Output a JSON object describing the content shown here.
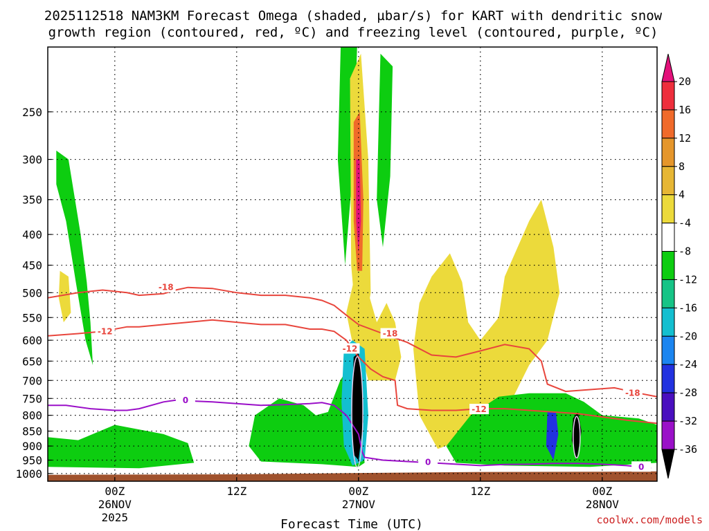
{
  "chart_data": {
    "type": "heatmap",
    "title_line1": "2025112518 NAM3KM Forecast Omega (shaded, µbar/s) for KART with dendritic snow",
    "title_line2": "growth region (contoured, red, ºC) and freezing level (contoured, purple, ºC)",
    "xlabel": "Forecast Time (UTC)",
    "credit": "coolwx.com/models",
    "x_range_hours": [
      -5.5,
      44.5
    ],
    "y_range_hpa": [
      195,
      1030
    ],
    "x_ticks": [
      {
        "h": 0,
        "top": "00Z",
        "mid": "26NOV",
        "bot": "2025"
      },
      {
        "h": 10,
        "top": "12Z",
        "mid": "",
        "bot": ""
      },
      {
        "h": 20,
        "top": "00Z",
        "mid": "27NOV",
        "bot": ""
      },
      {
        "h": 30,
        "top": "12Z",
        "mid": "",
        "bot": ""
      },
      {
        "h": 40,
        "top": "00Z",
        "mid": "28NOV",
        "bot": ""
      }
    ],
    "y_ticks": [
      250,
      300,
      350,
      400,
      450,
      500,
      550,
      600,
      650,
      700,
      750,
      800,
      850,
      900,
      950,
      1000
    ],
    "colorbar": {
      "levels": [
        20,
        16,
        12,
        8,
        4,
        -4,
        -8,
        -12,
        -16,
        -20,
        -24,
        -28,
        -32,
        -36
      ],
      "bins": [
        {
          "from": 16,
          "to": 20,
          "color": "#ee2e3c"
        },
        {
          "from": 12,
          "to": 16,
          "color": "#f06a2a"
        },
        {
          "from": 8,
          "to": 12,
          "color": "#e5962b"
        },
        {
          "from": 4,
          "to": 8,
          "color": "#e6b634"
        },
        {
          "from": 2,
          "to": 4,
          "color": "#ecda3b"
        },
        {
          "from": -4,
          "to": 2,
          "color": "#ffffff"
        },
        {
          "from": -8,
          "to": -4,
          "color": "#0dcd10"
        },
        {
          "from": -12,
          "to": -8,
          "color": "#16c486"
        },
        {
          "from": -16,
          "to": -12,
          "color": "#13bfd0"
        },
        {
          "from": -20,
          "to": -16,
          "color": "#1b85f0"
        },
        {
          "from": -24,
          "to": -20,
          "color": "#2232e0"
        },
        {
          "from": -28,
          "to": -24,
          "color": "#4a0fbf"
        },
        {
          "from": -32,
          "to": -28,
          "color": "#9a10c8"
        },
        {
          "from": -36,
          "to": -32,
          "color": "#a8a8a8"
        }
      ],
      "top_arrow_color": "#e3117a",
      "bottom_arrow_color": "#000000"
    },
    "omega_regions": [
      {
        "value": -6,
        "color": "#0dcd10",
        "points": [
          [
            -4.8,
            290
          ],
          [
            -3.8,
            300
          ],
          [
            -2.8,
            400
          ],
          [
            -2.3,
            480
          ],
          [
            -2.0,
            560
          ],
          [
            -1.8,
            660
          ],
          [
            -2.4,
            600
          ],
          [
            -3.2,
            480
          ],
          [
            -4.0,
            380
          ],
          [
            -4.8,
            330
          ]
        ]
      },
      {
        "value": 4,
        "color": "#ecda3b",
        "points": [
          [
            -4.5,
            460
          ],
          [
            -3.8,
            470
          ],
          [
            -3.6,
            540
          ],
          [
            -4.2,
            560
          ],
          [
            -4.6,
            510
          ]
        ]
      },
      {
        "value": -6,
        "color": "#0dcd10",
        "points": [
          [
            -5.5,
            870
          ],
          [
            -3,
            880
          ],
          [
            0,
            830
          ],
          [
            4,
            860
          ],
          [
            6,
            890
          ],
          [
            6.5,
            960
          ],
          [
            2,
            980
          ],
          [
            -5.5,
            975
          ]
        ]
      },
      {
        "value": -6,
        "color": "#0dcd10",
        "points": [
          [
            11.5,
            800
          ],
          [
            13.5,
            750
          ],
          [
            15.5,
            770
          ],
          [
            16.5,
            800
          ],
          [
            17.5,
            790
          ],
          [
            18.5,
            700
          ],
          [
            19.5,
            650
          ],
          [
            20.2,
            790
          ],
          [
            20.5,
            960
          ],
          [
            20,
            975
          ],
          [
            17,
            965
          ],
          [
            12,
            955
          ],
          [
            11.0,
            900
          ]
        ]
      },
      {
        "value": 4,
        "color": "#ecda3b",
        "points": [
          [
            19.0,
            540
          ],
          [
            19.8,
            460
          ],
          [
            20.8,
            500
          ],
          [
            21.5,
            560
          ],
          [
            22.3,
            520
          ],
          [
            23,
            560
          ],
          [
            23.5,
            640
          ],
          [
            23,
            700
          ],
          [
            20.8,
            700
          ],
          [
            20.3,
            640
          ],
          [
            19.6,
            620
          ]
        ]
      },
      {
        "value": 4,
        "color": "#ecda3b",
        "points": [
          [
            24.5,
            620
          ],
          [
            25,
            520
          ],
          [
            26,
            470
          ],
          [
            27.5,
            430
          ],
          [
            28.5,
            480
          ],
          [
            29,
            560
          ],
          [
            30,
            600
          ],
          [
            31.5,
            550
          ],
          [
            32,
            470
          ],
          [
            34,
            380
          ],
          [
            35,
            350
          ],
          [
            36,
            420
          ],
          [
            36.5,
            500
          ],
          [
            35.5,
            600
          ],
          [
            34,
            660
          ],
          [
            32.5,
            760
          ],
          [
            31,
            800
          ],
          [
            29,
            870
          ],
          [
            26.5,
            910
          ],
          [
            25,
            800
          ]
        ]
      },
      {
        "value": -10,
        "color": "#0dcd10",
        "points": [
          [
            29.2,
            800
          ],
          [
            31.5,
            745
          ],
          [
            34,
            735
          ],
          [
            37,
            735
          ],
          [
            38.5,
            760
          ],
          [
            40,
            800
          ],
          [
            43,
            810
          ],
          [
            44.5,
            830
          ],
          [
            44.5,
            960
          ],
          [
            39,
            975
          ],
          [
            32,
            970
          ],
          [
            28,
            960
          ],
          [
            27.2,
            900
          ]
        ]
      },
      {
        "value": -8,
        "color": "#0dcd10",
        "points": [
          [
            18.3,
            300
          ],
          [
            18.8,
            120
          ],
          [
            20.2,
            120
          ],
          [
            19.6,
            300
          ],
          [
            18.9,
            450
          ]
        ]
      },
      {
        "value": -8,
        "color": "#0dcd10",
        "points": [
          [
            21.5,
            350
          ],
          [
            21.8,
            200
          ],
          [
            22.8,
            210
          ],
          [
            22.6,
            320
          ],
          [
            22.0,
            420
          ]
        ]
      },
      {
        "value": 4,
        "color": "#ecda3b",
        "points": [
          [
            19.3,
            220
          ],
          [
            20.2,
            200
          ],
          [
            20.8,
            300
          ],
          [
            21.0,
            500
          ],
          [
            20.6,
            560
          ],
          [
            19.8,
            560
          ],
          [
            19.4,
            450
          ]
        ]
      },
      {
        "value": 14,
        "color": "#f06a2a",
        "points": [
          [
            19.6,
            260
          ],
          [
            20.1,
            250
          ],
          [
            20.4,
            350
          ],
          [
            20.3,
            460
          ],
          [
            19.9,
            460
          ],
          [
            19.6,
            380
          ]
        ]
      },
      {
        "value": 20,
        "color": "#e3117a",
        "points": [
          [
            19.8,
            300
          ],
          [
            20.1,
            300
          ],
          [
            20.2,
            380
          ],
          [
            20.0,
            430
          ],
          [
            19.8,
            380
          ]
        ]
      },
      {
        "value": -14,
        "color": "#13bfd0",
        "points": [
          [
            18.8,
            620
          ],
          [
            19.5,
            600
          ],
          [
            20.5,
            620
          ],
          [
            20.8,
            800
          ],
          [
            20.5,
            950
          ],
          [
            19.5,
            970
          ],
          [
            18.8,
            900
          ],
          [
            18.6,
            760
          ]
        ]
      },
      {
        "value": -36,
        "color": "#000000",
        "points": [
          [
            19.6,
            640
          ],
          [
            20.0,
            630
          ],
          [
            20.3,
            700
          ],
          [
            20.4,
            820
          ],
          [
            20.0,
            950
          ],
          [
            19.6,
            930
          ],
          [
            19.4,
            800
          ]
        ]
      },
      {
        "value": -24,
        "color": "#2232e0",
        "points": [
          [
            35.5,
            790
          ],
          [
            36.2,
            790
          ],
          [
            36.4,
            860
          ],
          [
            36.0,
            950
          ],
          [
            35.4,
            900
          ]
        ]
      },
      {
        "value": -36,
        "color": "#000000",
        "points": [
          [
            37.6,
            810
          ],
          [
            38.0,
            790
          ],
          [
            38.3,
            850
          ],
          [
            37.9,
            950
          ],
          [
            37.5,
            880
          ]
        ]
      }
    ],
    "dgz_lines": [
      {
        "label": "-18",
        "color": "#e8453c",
        "points": [
          [
            -5.5,
            510
          ],
          [
            -3,
            500
          ],
          [
            -1,
            495
          ],
          [
            1,
            500
          ],
          [
            2,
            505
          ],
          [
            4,
            502
          ],
          [
            5,
            495
          ],
          [
            6,
            490
          ],
          [
            8,
            492
          ],
          [
            10,
            500
          ],
          [
            12,
            505
          ],
          [
            14,
            505
          ],
          [
            16,
            510
          ],
          [
            17,
            515
          ],
          [
            18,
            525
          ],
          [
            19,
            545
          ],
          [
            20,
            565
          ],
          [
            22,
            585
          ],
          [
            24,
            605
          ],
          [
            26,
            635
          ],
          [
            28,
            640
          ],
          [
            30,
            625
          ],
          [
            32,
            610
          ],
          [
            34,
            620
          ],
          [
            35,
            650
          ],
          [
            35.5,
            710
          ],
          [
            37,
            730
          ],
          [
            39,
            725
          ],
          [
            41,
            720
          ],
          [
            43,
            735
          ],
          [
            44.5,
            745
          ]
        ]
      },
      {
        "label": "-12",
        "color": "#e8453c",
        "points": [
          [
            -5.5,
            590
          ],
          [
            -3,
            585
          ],
          [
            -1,
            580
          ],
          [
            1,
            570
          ],
          [
            2,
            570
          ],
          [
            4,
            565
          ],
          [
            6,
            560
          ],
          [
            8,
            555
          ],
          [
            10,
            560
          ],
          [
            12,
            565
          ],
          [
            14,
            565
          ],
          [
            16,
            575
          ],
          [
            17,
            575
          ],
          [
            18,
            580
          ],
          [
            19,
            600
          ],
          [
            20,
            640
          ],
          [
            21,
            670
          ],
          [
            22,
            690
          ],
          [
            23,
            700
          ],
          [
            23.2,
            770
          ],
          [
            24,
            780
          ],
          [
            26,
            785
          ],
          [
            28,
            785
          ],
          [
            30,
            780
          ],
          [
            32,
            780
          ],
          [
            34,
            785
          ],
          [
            36,
            790
          ],
          [
            38,
            795
          ],
          [
            40,
            805
          ],
          [
            42,
            815
          ],
          [
            44.5,
            825
          ]
        ]
      },
      {
        "label": "0",
        "color": "#9a0ec8",
        "points": [
          [
            -5.5,
            770
          ],
          [
            -4,
            770
          ],
          [
            -2,
            780
          ],
          [
            0,
            785
          ],
          [
            1,
            785
          ],
          [
            2,
            780
          ],
          [
            4,
            760
          ],
          [
            5,
            755
          ],
          [
            6,
            757
          ],
          [
            8,
            760
          ],
          [
            10,
            765
          ],
          [
            12,
            770
          ],
          [
            14,
            768
          ],
          [
            16,
            765
          ],
          [
            17,
            762
          ],
          [
            18,
            770
          ],
          [
            19,
            800
          ],
          [
            20,
            860
          ],
          [
            20.3,
            920
          ],
          [
            20.5,
            940
          ],
          [
            22,
            950
          ],
          [
            24,
            955
          ],
          [
            26,
            960
          ],
          [
            28,
            965
          ],
          [
            30,
            970
          ],
          [
            32,
            966
          ],
          [
            34,
            965
          ],
          [
            36,
            962
          ],
          [
            38,
            962
          ],
          [
            40,
            965
          ],
          [
            42,
            970
          ],
          [
            44,
            980
          ]
        ]
      }
    ],
    "contour_labels": [
      {
        "text": "-18",
        "h": 4.2,
        "p": 490,
        "color": "#e8453c"
      },
      {
        "text": "-12",
        "h": -0.8,
        "p": 580,
        "color": "#e8453c"
      },
      {
        "text": "0",
        "h": 5.8,
        "p": 755,
        "color": "#9a0ec8"
      },
      {
        "text": "-18",
        "h": 22.6,
        "p": 585,
        "color": "#e8453c"
      },
      {
        "text": "-12",
        "h": 29.9,
        "p": 782,
        "color": "#e8453c"
      },
      {
        "text": "-18",
        "h": 42.5,
        "p": 735,
        "color": "#e8453c"
      },
      {
        "text": "0",
        "h": 25.7,
        "p": 958,
        "color": "#9a0ec8"
      },
      {
        "text": "0",
        "h": 43.2,
        "p": 975,
        "color": "#9a0ec8"
      },
      {
        "text": "-12",
        "h": 19.3,
        "p": 620,
        "color": "#e8453c"
      }
    ]
  }
}
